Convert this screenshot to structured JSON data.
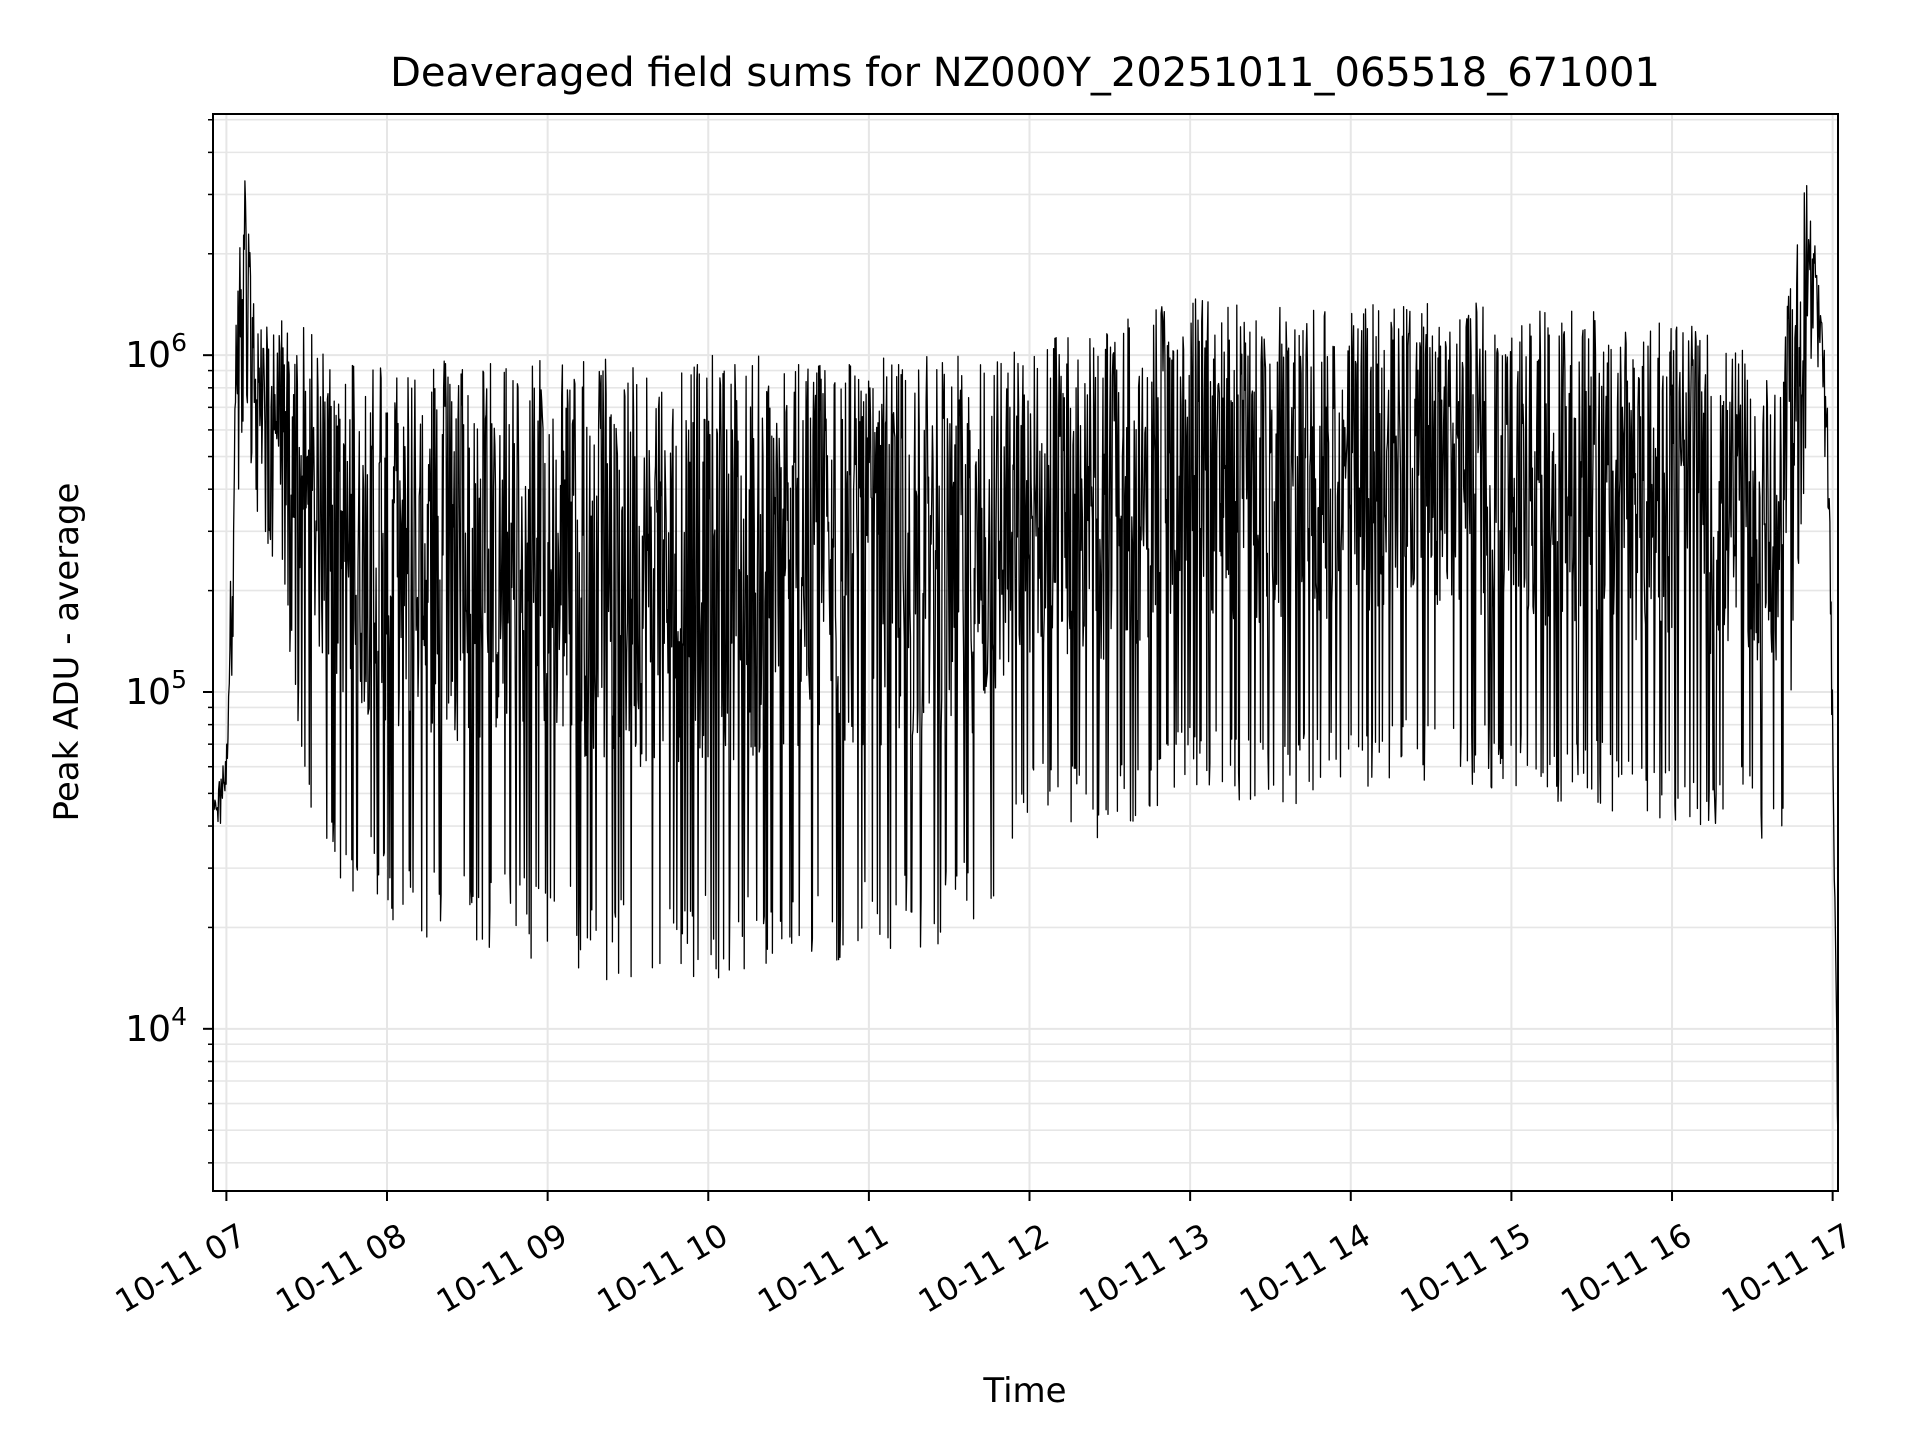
{
  "chart_data": {
    "type": "line",
    "title": "Deaveraged field sums for NZ000Y_20251011_065518_671001",
    "xlabel": "Time",
    "ylabel": "Peak ADU - average",
    "y_scale": "log",
    "ylim": [
      3300,
      5200000
    ],
    "xlim": [
      "2025-10-11T06:55",
      "2025-10-11T17:02"
    ],
    "x_ticks": [
      {
        "label": "10-11 07",
        "t": "2025-10-11T07:00"
      },
      {
        "label": "10-11 08",
        "t": "2025-10-11T08:00"
      },
      {
        "label": "10-11 09",
        "t": "2025-10-11T09:00"
      },
      {
        "label": "10-11 10",
        "t": "2025-10-11T10:00"
      },
      {
        "label": "10-11 11",
        "t": "2025-10-11T11:00"
      },
      {
        "label": "10-11 12",
        "t": "2025-10-11T12:00"
      },
      {
        "label": "10-11 13",
        "t": "2025-10-11T13:00"
      },
      {
        "label": "10-11 14",
        "t": "2025-10-11T14:00"
      },
      {
        "label": "10-11 15",
        "t": "2025-10-11T15:00"
      },
      {
        "label": "10-11 16",
        "t": "2025-10-11T16:00"
      },
      {
        "label": "10-11 17",
        "t": "2025-10-11T17:00"
      }
    ],
    "y_ticks": [
      {
        "base": "10",
        "exp": "4",
        "value": 10000
      },
      {
        "base": "10",
        "exp": "5",
        "value": 100000
      },
      {
        "base": "10",
        "exp": "6",
        "value": 1000000
      }
    ],
    "grid": true,
    "series_color": "#000000",
    "envelope": {
      "description_of": "approximate upper/lower extent of the rapidly oscillating signal",
      "points": [
        {
          "t": "2025-10-11T06:55",
          "high": 45000,
          "low": 40000
        },
        {
          "t": "2025-10-11T07:00",
          "high": 70000,
          "low": 40000
        },
        {
          "t": "2025-10-11T07:04",
          "high": 1800000,
          "low": 300000
        },
        {
          "t": "2025-10-11T07:07",
          "high": 3400000,
          "low": 700000
        },
        {
          "t": "2025-10-11T07:12",
          "high": 1200000,
          "low": 300000
        },
        {
          "t": "2025-10-11T07:20",
          "high": 1300000,
          "low": 220000
        },
        {
          "t": "2025-10-11T07:30",
          "high": 1200000,
          "low": 50000
        },
        {
          "t": "2025-10-11T07:40",
          "high": 1000000,
          "low": 28000
        },
        {
          "t": "2025-10-11T08:00",
          "high": 1000000,
          "low": 20000
        },
        {
          "t": "2025-10-11T08:30",
          "high": 1000000,
          "low": 17000
        },
        {
          "t": "2025-10-11T09:00",
          "high": 1000000,
          "low": 16000
        },
        {
          "t": "2025-10-11T09:30",
          "high": 1000000,
          "low": 13000
        },
        {
          "t": "2025-10-11T10:00",
          "high": 1000000,
          "low": 14000
        },
        {
          "t": "2025-10-11T10:30",
          "high": 1000000,
          "low": 14000
        },
        {
          "t": "2025-10-11T11:00",
          "high": 1000000,
          "low": 16000
        },
        {
          "t": "2025-10-11T11:30",
          "high": 1000000,
          "low": 17000
        },
        {
          "t": "2025-10-11T11:45",
          "high": 1000000,
          "low": 20000
        },
        {
          "t": "2025-10-11T12:00",
          "high": 1100000,
          "low": 40000
        },
        {
          "t": "2025-10-11T12:30",
          "high": 1300000,
          "low": 35000
        },
        {
          "t": "2025-10-11T13:00",
          "high": 1500000,
          "low": 50000
        },
        {
          "t": "2025-10-11T13:30",
          "high": 1400000,
          "low": 45000
        },
        {
          "t": "2025-10-11T14:00",
          "high": 1400000,
          "low": 50000
        },
        {
          "t": "2025-10-11T14:30",
          "high": 1500000,
          "low": 55000
        },
        {
          "t": "2025-10-11T15:00",
          "high": 1400000,
          "low": 50000
        },
        {
          "t": "2025-10-11T15:30",
          "high": 1400000,
          "low": 45000
        },
        {
          "t": "2025-10-11T16:00",
          "high": 1300000,
          "low": 40000
        },
        {
          "t": "2025-10-11T16:30",
          "high": 1000000,
          "low": 40000
        },
        {
          "t": "2025-10-11T16:40",
          "high": 900000,
          "low": 30000
        },
        {
          "t": "2025-10-11T16:50",
          "high": 3800000,
          "low": 450000
        },
        {
          "t": "2025-10-11T16:58",
          "high": 950000,
          "low": 450000
        },
        {
          "t": "2025-10-11T17:00",
          "high": 100000,
          "low": 60000
        },
        {
          "t": "2025-10-11T17:02",
          "high": 5000,
          "low": 4000
        }
      ]
    }
  }
}
